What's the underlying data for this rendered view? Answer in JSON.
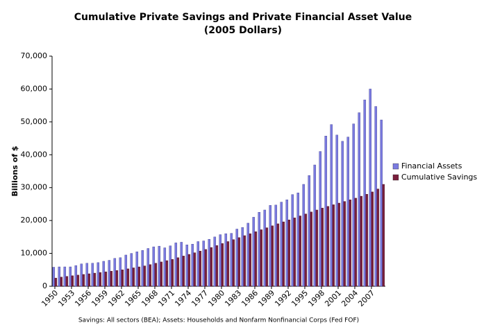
{
  "chart_data": {
    "type": "bar",
    "title": "Cumulative Private Savings and Private Financial Asset Value",
    "subtitle": "(2005 Dollars)",
    "ylabel": "Billions of $",
    "note": "Savings: All sectors (BEA); Assets: Households and Nonfarm Nonfinancial Corps (Fed FOF)",
    "categories": [
      "1950",
      null,
      null,
      "1953",
      null,
      null,
      "1956",
      null,
      null,
      "1959",
      null,
      null,
      "1962",
      null,
      null,
      "1965",
      null,
      null,
      "1968",
      null,
      null,
      "1971",
      null,
      null,
      "1974",
      null,
      null,
      "1977",
      null,
      null,
      "1980",
      null,
      null,
      "1983",
      null,
      null,
      "1986",
      null,
      null,
      "1989",
      null,
      null,
      "1992",
      null,
      null,
      "1995",
      null,
      null,
      "1998",
      null,
      null,
      "2001",
      null,
      null,
      "2004",
      null,
      null,
      "2007",
      null,
      null
    ],
    "series": [
      {
        "name": "Financial Assets",
        "color": "#7b7be0",
        "values": [
          5800,
          5900,
          5900,
          5900,
          6300,
          6800,
          7000,
          7000,
          7200,
          7600,
          7900,
          8500,
          8700,
          9500,
          10000,
          10500,
          10900,
          11500,
          12000,
          12200,
          11700,
          12300,
          13200,
          13400,
          12600,
          12800,
          13600,
          13800,
          14300,
          15000,
          15700,
          16000,
          16100,
          17400,
          17900,
          19200,
          21000,
          22500,
          23200,
          24600,
          24700,
          25600,
          26300,
          27900,
          28400,
          31000,
          33700,
          36900,
          41000,
          45700,
          49200,
          46000,
          44100,
          45400,
          49400,
          52800,
          56700,
          60000,
          54700,
          50600
        ]
      },
      {
        "name": "Cumulative Savings",
        "color": "#7a1f3d",
        "values": [
          2500,
          2800,
          3000,
          3200,
          3400,
          3600,
          3800,
          4000,
          4200,
          4400,
          4600,
          4800,
          5000,
          5300,
          5600,
          5900,
          6200,
          6600,
          7000,
          7400,
          7800,
          8200,
          8700,
          9200,
          9700,
          10200,
          10700,
          11200,
          11800,
          12400,
          13000,
          13600,
          14200,
          14800,
          15400,
          16000,
          16600,
          17200,
          17800,
          18400,
          19000,
          19600,
          20200,
          20800,
          21400,
          22000,
          22600,
          23200,
          23800,
          24300,
          24800,
          25300,
          25800,
          26300,
          26800,
          27400,
          28000,
          28700,
          29600,
          31000
        ]
      }
    ],
    "ylim": [
      0,
      70000
    ],
    "yticks": [
      0,
      {
        "value": 10000,
        "label": "10,000"
      },
      {
        "value": 20000,
        "label": "20,000"
      },
      {
        "value": 30000,
        "label": "30,000"
      },
      {
        "value": 40000,
        "label": "40,000"
      },
      {
        "value": 50000,
        "label": "50,000"
      },
      {
        "value": 60000,
        "label": "60,000"
      },
      {
        "value": 70000,
        "label": "70,000"
      }
    ],
    "legend": "right"
  }
}
